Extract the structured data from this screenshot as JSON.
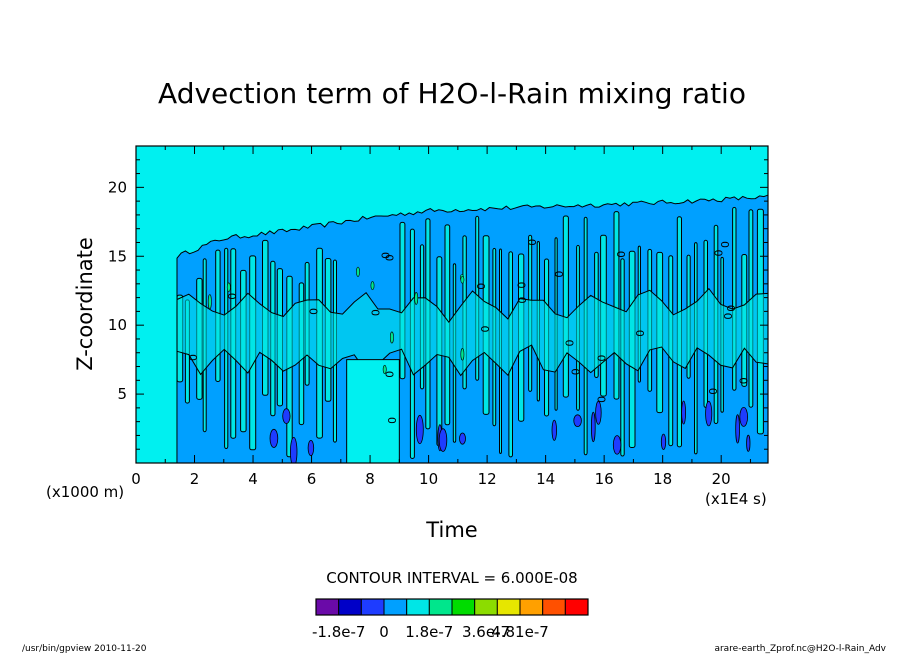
{
  "chart_data": {
    "type": "heatmap",
    "title": "Advection term of H2O-l-Rain mixing ratio",
    "xlabel": "Time",
    "ylabel": "Z-coordinate",
    "x_unit": "(x1E4 s)",
    "y_unit": "(x1000 m)",
    "xlim": [
      0,
      21.6
    ],
    "ylim": [
      0,
      23
    ],
    "xticks": [
      0,
      2,
      4,
      6,
      8,
      10,
      12,
      14,
      16,
      18,
      20
    ],
    "yticks": [
      5,
      10,
      15,
      20
    ],
    "contour_interval_text": "CONTOUR INTERVAL = 6.000E-08",
    "colorbar": {
      "colors": [
        "#6a0aa8",
        "#0000c8",
        "#1e3cff",
        "#00a0ff",
        "#00e6e6",
        "#00e68c",
        "#00dc00",
        "#8cdc00",
        "#e6e600",
        "#ffa000",
        "#ff5000",
        "#ff0000"
      ],
      "labels": [
        "-1.8e-7",
        "0",
        "1.8e-7",
        "3.6e-7",
        "4.81e-7"
      ]
    },
    "background_color": "#00f0f0",
    "dominant_color": "#00a0ff",
    "contour_label": "0",
    "cloud_top_km": [
      {
        "time": 1.4,
        "z": 15
      },
      {
        "time": 3,
        "z": 16.3
      },
      {
        "time": 5,
        "z": 16.8
      },
      {
        "time": 8,
        "z": 17.8
      },
      {
        "time": 10,
        "z": 18.3
      },
      {
        "time": 14,
        "z": 18.6
      },
      {
        "time": 18,
        "z": 18.9
      },
      {
        "time": 21.6,
        "z": 19.3
      }
    ],
    "quiet_region": {
      "time_start": 7.2,
      "time_end": 9.0,
      "z_top": 7.5
    }
  },
  "footer": {
    "left": "/usr/bin/gpview   2010-11-20",
    "right": "arare-earth_Zprof.nc@H2O-l-Rain_Adv"
  }
}
